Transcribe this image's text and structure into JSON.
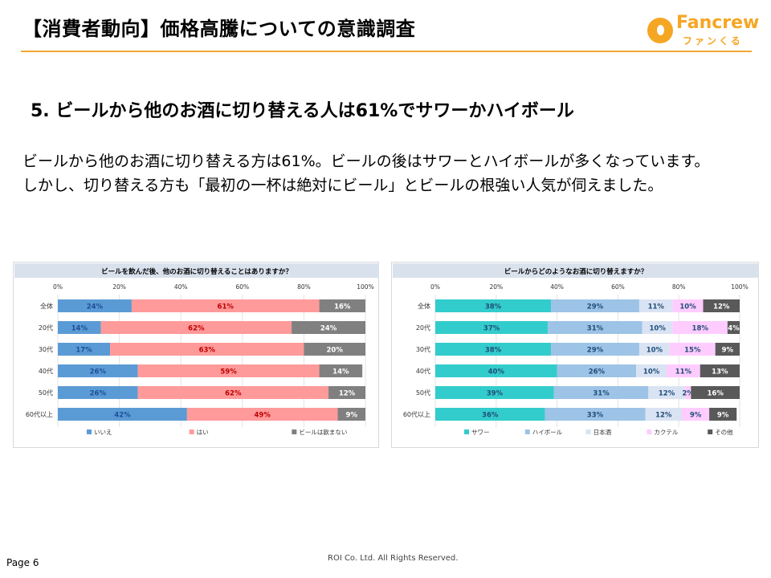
{
  "header": {
    "title": "【消費者動向】価格高騰についての意識調査",
    "logo_text": "Fancrew",
    "logo_sub": "ファンくる",
    "accent_color": "#f0a830"
  },
  "section_title": "5. ビールから他のお酒に切り替える人は61%でサワーかハイボール",
  "body_lines": [
    "ビールから他のお酒に切り替える方は61%。ビールの後はサワーとハイボールが多くなっています。",
    "しかし、切り替える方も「最初の一杯は絶対にビール」とビールの根強い人気が伺えました。"
  ],
  "footer": {
    "page": "Page 6",
    "copyright": "ROI Co. Ltd. All Rights Reserved."
  },
  "chart_data": [
    {
      "type": "bar",
      "stacked": true,
      "orientation": "horizontal",
      "percent": true,
      "title": "ビールを飲んだ後、他のお酒に切り替えることはありますか？",
      "xlim": [
        0,
        100
      ],
      "ticks": [
        "0%",
        "20%",
        "40%",
        "60%",
        "80%",
        "100%"
      ],
      "categories": [
        "全体",
        "20代",
        "30代",
        "40代",
        "50代",
        "60代以上"
      ],
      "legend_position": "bottom",
      "series": [
        {
          "name": "いいえ",
          "color": "#5b9bd5",
          "label_color": "#1f4e99",
          "values": [
            24,
            14,
            17,
            26,
            26,
            42
          ]
        },
        {
          "name": "はい",
          "color": "#ff9a9a",
          "label_color": "#c00000",
          "values": [
            61,
            62,
            63,
            59,
            62,
            49
          ]
        },
        {
          "name": "ビールは飲まない",
          "color": "#808080",
          "label_color": "#ffffff",
          "values": [
            16,
            24,
            20,
            14,
            12,
            9
          ]
        }
      ]
    },
    {
      "type": "bar",
      "stacked": true,
      "orientation": "horizontal",
      "percent": true,
      "title": "ビールからどのようなお酒に切り替えますか？",
      "xlim": [
        0,
        100
      ],
      "ticks": [
        "0%",
        "20%",
        "40%",
        "60%",
        "80%",
        "100%"
      ],
      "categories": [
        "全体",
        "20代",
        "30代",
        "40代",
        "50代",
        "60代以上"
      ],
      "legend_position": "bottom",
      "series": [
        {
          "name": "サワー",
          "color": "#33cccc",
          "label_color": "#1f4e79",
          "values": [
            38,
            37,
            38,
            40,
            39,
            36
          ]
        },
        {
          "name": "ハイボール",
          "color": "#9dc3e6",
          "label_color": "#1f4e79",
          "values": [
            29,
            31,
            29,
            26,
            31,
            33
          ]
        },
        {
          "name": "日本酒",
          "color": "#dae3f3",
          "label_color": "#1f4e79",
          "values": [
            11,
            10,
            10,
            10,
            12,
            12
          ]
        },
        {
          "name": "カクテル",
          "color": "#ffccff",
          "label_color": "#1f4e79",
          "values": [
            10,
            18,
            15,
            11,
            2,
            9
          ]
        },
        {
          "name": "その他",
          "color": "#595959",
          "label_color": "#ffffff",
          "values": [
            12,
            4,
            9,
            13,
            16,
            9
          ]
        }
      ]
    }
  ]
}
